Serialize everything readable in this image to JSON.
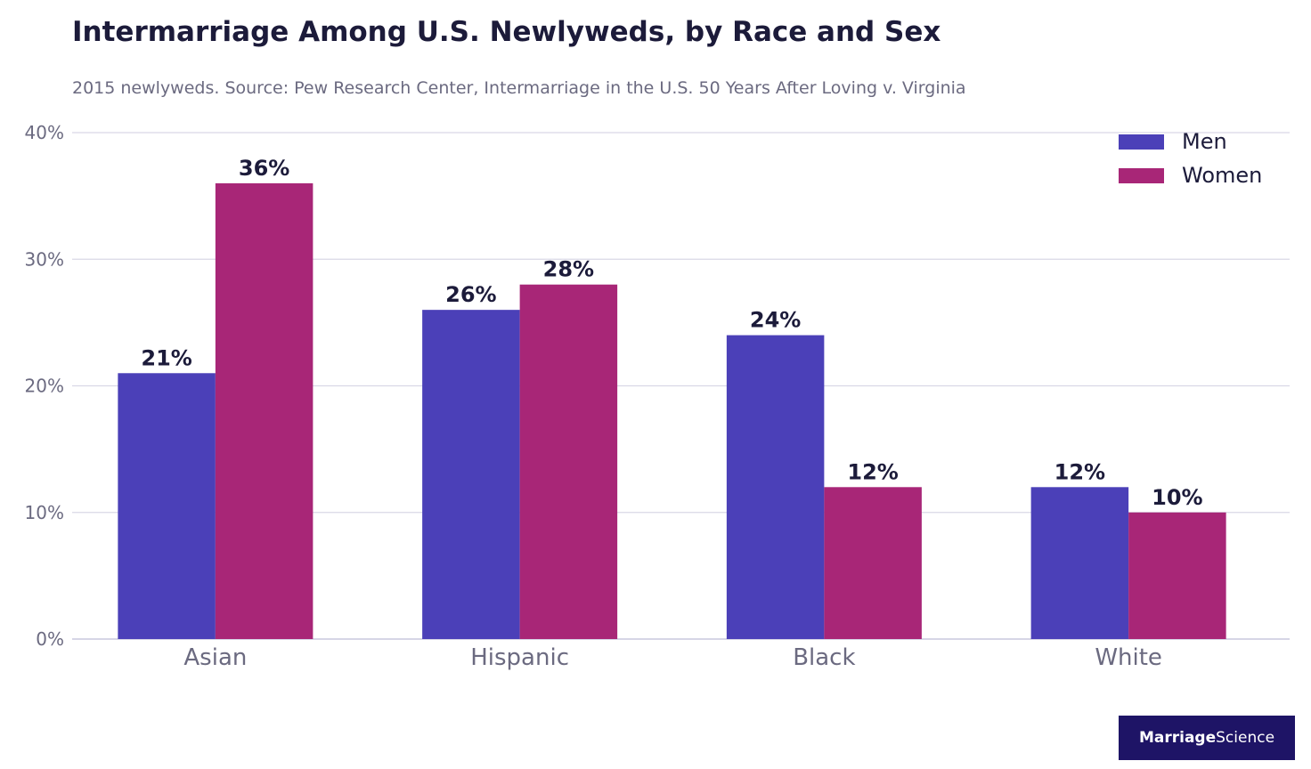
{
  "title": "Intermarriage Among U.S. Newlyweds, by Race and Sex",
  "subtitle": "2015 newlyweds. Source: Pew Research Center, Intermarriage in the U.S. 50 Years After Loving v. Virginia",
  "brand": {
    "part1": "Marriage",
    "part2": "Science"
  },
  "colors": {
    "men": "#4b40b8",
    "women": "#a82677",
    "grid": "#d9d8e6",
    "axis": "#c8c7dd"
  },
  "chart_data": {
    "type": "bar",
    "categories": [
      "Asian",
      "Hispanic",
      "Black",
      "White"
    ],
    "series": [
      {
        "name": "Men",
        "values": [
          21,
          26,
          24,
          12
        ],
        "labels": [
          "21%",
          "26%",
          "24%",
          "12%"
        ]
      },
      {
        "name": "Women",
        "values": [
          36,
          28,
          12,
          10
        ],
        "labels": [
          "36%",
          "28%",
          "12%",
          "10%"
        ]
      }
    ],
    "y_ticks": [
      0,
      10,
      20,
      30,
      40
    ],
    "y_tick_labels": [
      "0%",
      "10%",
      "20%",
      "30%",
      "40%"
    ],
    "ylim": [
      0,
      40
    ],
    "grid": true,
    "legend_position": "top-right"
  }
}
